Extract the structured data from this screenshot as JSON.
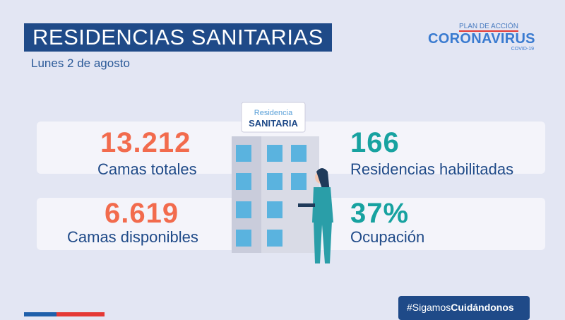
{
  "header": {
    "title": "RESIDENCIAS SANITARIAS",
    "date": "Lunes 2 de agosto"
  },
  "logo": {
    "line1": "PLAN DE ACCIÓN",
    "line2": "CORONAVIRUS",
    "line3": "COVID-19"
  },
  "sign": {
    "line1": "Residencia",
    "line2": "SANITARIA"
  },
  "stats": [
    {
      "value": "13.212",
      "label": "Camas totales",
      "color": "#f26b4d"
    },
    {
      "value": "166",
      "label": "Residencias habilitadas",
      "color": "#17a2a0"
    },
    {
      "value": "6.619",
      "label": "Camas disponibles",
      "color": "#f26b4d"
    },
    {
      "value": "37%",
      "label": "Ocupación",
      "color": "#17a2a0"
    }
  ],
  "footer": {
    "hashtag_light": "#Sigamos",
    "hashtag_bold": "Cuidándonos"
  }
}
